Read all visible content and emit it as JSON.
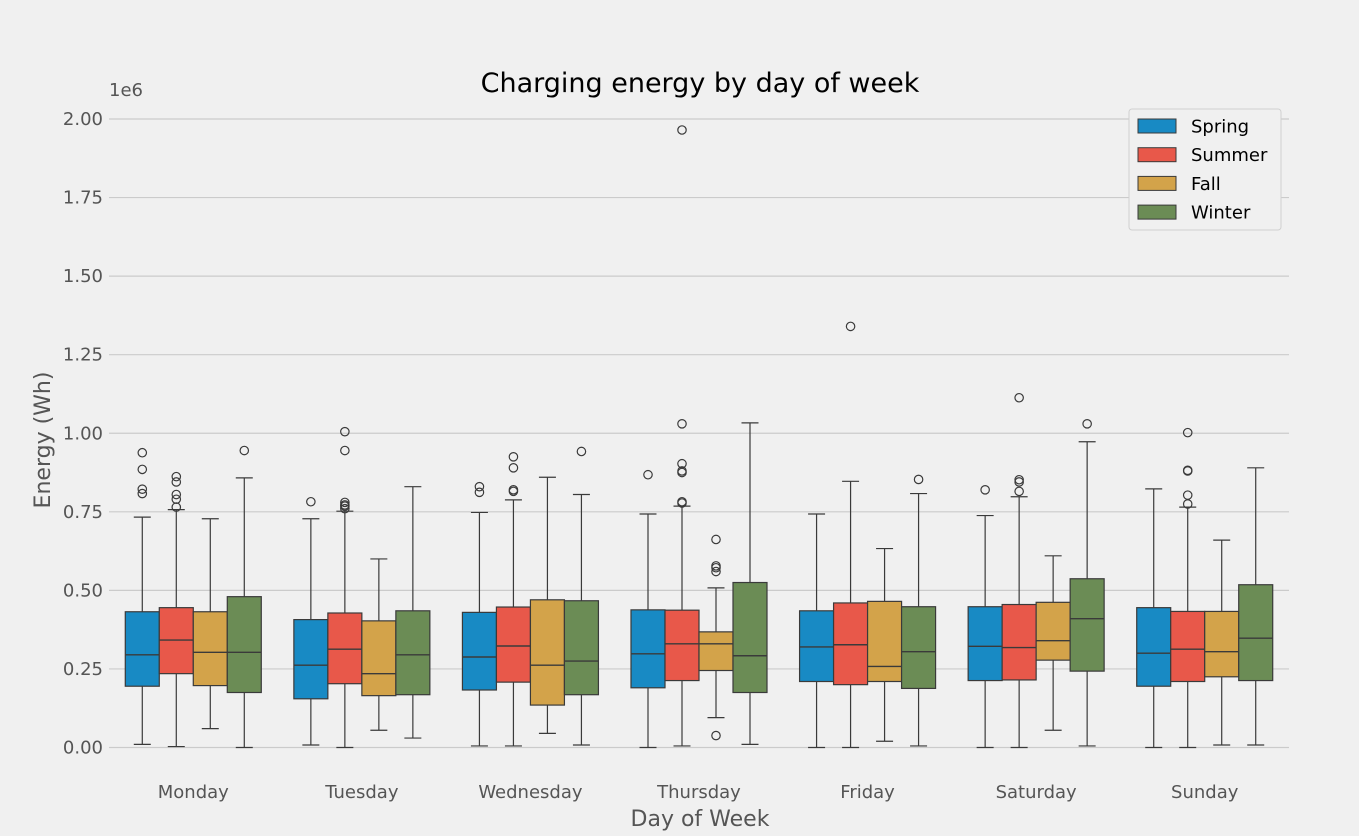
{
  "chart_data": {
    "type": "box",
    "title": "Charging energy by day of week",
    "xlabel": "Day of Week",
    "ylabel": "Energy (Wh)",
    "y_scale_label": "1e6",
    "ylim": [
      -40000,
      2100000
    ],
    "yticks": [
      0,
      250000,
      500000,
      750000,
      1000000,
      1250000,
      1500000,
      1750000,
      2000000
    ],
    "ytick_labels": [
      "0.00",
      "0.25",
      "0.50",
      "0.75",
      "1.00",
      "1.25",
      "1.50",
      "1.75",
      "2.00"
    ],
    "grid": "horizontal",
    "legend_position": "top-right",
    "categories": [
      "Monday",
      "Tuesday",
      "Wednesday",
      "Thursday",
      "Friday",
      "Saturday",
      "Sunday"
    ],
    "series": [
      {
        "name": "Spring",
        "color": "#188ac4",
        "boxes": [
          {
            "whislo": 10000,
            "q1": 195000,
            "med": 295000,
            "q3": 432000,
            "whishi": 733000,
            "fliers": [
              808000,
              822000,
              885000,
              938000
            ]
          },
          {
            "whislo": 8000,
            "q1": 155000,
            "med": 262000,
            "q3": 407000,
            "whishi": 728000,
            "fliers": [
              782000
            ]
          },
          {
            "whislo": 5000,
            "q1": 183000,
            "med": 288000,
            "q3": 430000,
            "whishi": 748000,
            "fliers": [
              812000,
              830000
            ]
          },
          {
            "whislo": 0,
            "q1": 190000,
            "med": 298000,
            "q3": 438000,
            "whishi": 743000,
            "fliers": [
              868000
            ]
          },
          {
            "whislo": 0,
            "q1": 210000,
            "med": 320000,
            "q3": 435000,
            "whishi": 743000,
            "fliers": []
          },
          {
            "whislo": 0,
            "q1": 213000,
            "med": 322000,
            "q3": 448000,
            "whishi": 738000,
            "fliers": [
              820000
            ]
          },
          {
            "whislo": 0,
            "q1": 195000,
            "med": 300000,
            "q3": 445000,
            "whishi": 823000,
            "fliers": []
          }
        ]
      },
      {
        "name": "Summer",
        "color": "#e8584a",
        "boxes": [
          {
            "whislo": 3000,
            "q1": 235000,
            "med": 342000,
            "q3": 445000,
            "whishi": 757000,
            "fliers": [
              765000,
              790000,
              805000,
              845000,
              862000
            ]
          },
          {
            "whislo": 0,
            "q1": 203000,
            "med": 313000,
            "q3": 428000,
            "whishi": 752000,
            "fliers": [
              760000,
              768000,
              772000,
              780000,
              945000,
              1005000
            ]
          },
          {
            "whislo": 5000,
            "q1": 208000,
            "med": 323000,
            "q3": 447000,
            "whishi": 788000,
            "fliers": [
              815000,
              820000,
              890000,
              925000
            ]
          },
          {
            "whislo": 5000,
            "q1": 213000,
            "med": 330000,
            "q3": 437000,
            "whishi": 768000,
            "fliers": [
              778000,
              782000,
              875000,
              880000,
              903000,
              1030000,
              1965000
            ]
          },
          {
            "whislo": 0,
            "q1": 200000,
            "med": 327000,
            "q3": 460000,
            "whishi": 847000,
            "fliers": [
              1340000
            ]
          },
          {
            "whislo": 0,
            "q1": 215000,
            "med": 318000,
            "q3": 455000,
            "whishi": 798000,
            "fliers": [
              815000,
              845000,
              852000,
              1113000
            ]
          },
          {
            "whislo": 0,
            "q1": 210000,
            "med": 313000,
            "q3": 433000,
            "whishi": 765000,
            "fliers": [
              775000,
              803000,
              880000,
              882000,
              1002000
            ]
          }
        ]
      },
      {
        "name": "Fall",
        "color": "#d3a34a",
        "boxes": [
          {
            "whislo": 60000,
            "q1": 197000,
            "med": 303000,
            "q3": 432000,
            "whishi": 728000,
            "fliers": []
          },
          {
            "whislo": 55000,
            "q1": 165000,
            "med": 235000,
            "q3": 403000,
            "whishi": 600000,
            "fliers": []
          },
          {
            "whislo": 45000,
            "q1": 135000,
            "med": 262000,
            "q3": 470000,
            "whishi": 860000,
            "fliers": []
          },
          {
            "whislo": 95000,
            "q1": 245000,
            "med": 330000,
            "q3": 368000,
            "whishi": 508000,
            "fliers": [
              38000,
              560000,
              572000,
              578000,
              662000
            ]
          },
          {
            "whislo": 20000,
            "q1": 210000,
            "med": 258000,
            "q3": 465000,
            "whishi": 633000,
            "fliers": []
          },
          {
            "whislo": 55000,
            "q1": 278000,
            "med": 340000,
            "q3": 462000,
            "whishi": 610000,
            "fliers": []
          },
          {
            "whislo": 8000,
            "q1": 225000,
            "med": 305000,
            "q3": 433000,
            "whishi": 660000,
            "fliers": []
          }
        ]
      },
      {
        "name": "Winter",
        "color": "#6b8c55",
        "boxes": [
          {
            "whislo": 0,
            "q1": 175000,
            "med": 303000,
            "q3": 480000,
            "whishi": 858000,
            "fliers": [
              945000
            ]
          },
          {
            "whislo": 30000,
            "q1": 168000,
            "med": 295000,
            "q3": 435000,
            "whishi": 830000,
            "fliers": []
          },
          {
            "whislo": 8000,
            "q1": 168000,
            "med": 275000,
            "q3": 467000,
            "whishi": 805000,
            "fliers": [
              942000
            ]
          },
          {
            "whislo": 10000,
            "q1": 175000,
            "med": 292000,
            "q3": 525000,
            "whishi": 1033000,
            "fliers": []
          },
          {
            "whislo": 5000,
            "q1": 188000,
            "med": 305000,
            "q3": 448000,
            "whishi": 808000,
            "fliers": [
              853000
            ]
          },
          {
            "whislo": 5000,
            "q1": 243000,
            "med": 410000,
            "q3": 537000,
            "whishi": 973000,
            "fliers": [
              1030000
            ]
          },
          {
            "whislo": 8000,
            "q1": 213000,
            "med": 348000,
            "q3": 518000,
            "whishi": 890000,
            "fliers": []
          }
        ]
      }
    ]
  }
}
